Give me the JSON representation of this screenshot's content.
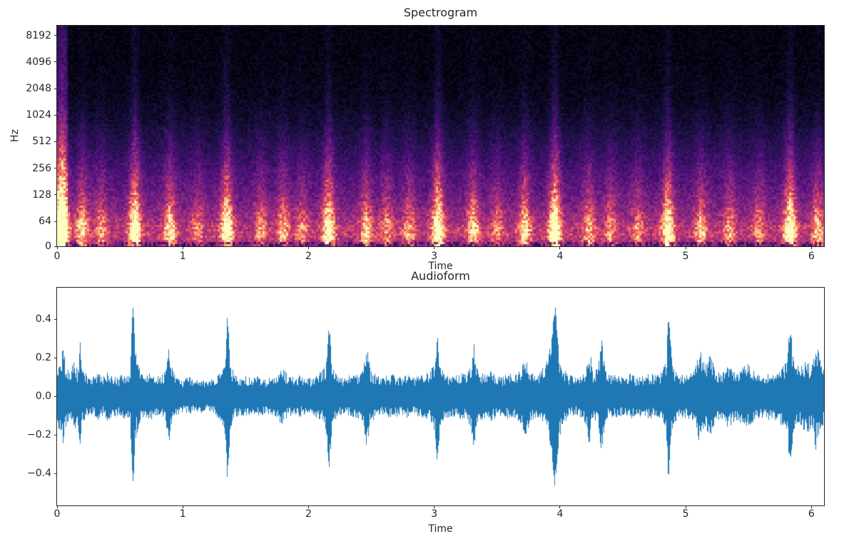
{
  "figure": {
    "background": "#ffffff",
    "text_color": "#262626",
    "spine_color": "#262626"
  },
  "chart_data": [
    {
      "type": "heatmap",
      "title": "Spectrogram",
      "xlabel": "Time",
      "ylabel": "Hz",
      "colormap": "magma",
      "x_range": [
        0,
        6.1
      ],
      "xticks": [
        0,
        1,
        2,
        3,
        4,
        5,
        6
      ],
      "yticks": [
        0,
        64,
        128,
        256,
        512,
        1024,
        2048,
        4096,
        8192
      ],
      "yticklabels": [
        "0",
        "64",
        "128",
        "256",
        "512",
        "1024",
        "2048",
        "4096",
        "8192"
      ],
      "y_scale": "log2-octaves-with-zero-floor",
      "y_top_hz": 10500,
      "grid": false,
      "legend": "none",
      "description": "Log-frequency power spectrogram, black at high frequencies, bright orange/cream energy band below ~128 Hz, purple vertical onset plumes at each percussive hit",
      "onset_times": [
        0.04,
        0.2,
        0.35,
        0.62,
        0.9,
        1.12,
        1.35,
        1.62,
        1.8,
        1.95,
        2.16,
        2.46,
        2.62,
        2.8,
        3.03,
        3.31,
        3.5,
        3.72,
        3.96,
        4.23,
        4.4,
        4.62,
        4.86,
        5.12,
        5.35,
        5.58,
        5.83,
        6.05
      ],
      "onset_strengths": [
        1.15,
        0.6,
        0.4,
        0.95,
        0.65,
        0.35,
        0.9,
        0.4,
        0.5,
        0.35,
        0.85,
        0.55,
        0.4,
        0.4,
        0.95,
        0.6,
        0.35,
        0.65,
        1.0,
        0.5,
        0.4,
        0.4,
        0.85,
        0.5,
        0.4,
        0.35,
        0.9,
        0.55
      ],
      "colormap_stops": [
        [
          0.0,
          "#000004"
        ],
        [
          0.15,
          "#1d1147"
        ],
        [
          0.3,
          "#51127c"
        ],
        [
          0.45,
          "#822681"
        ],
        [
          0.6,
          "#b73779"
        ],
        [
          0.7,
          "#e75263"
        ],
        [
          0.8,
          "#fc8961"
        ],
        [
          0.9,
          "#fec488"
        ],
        [
          1.0,
          "#fcfdbf"
        ]
      ]
    },
    {
      "type": "line",
      "title": "Audioform",
      "xlabel": "Time",
      "ylabel": "",
      "color": "#1f77b4",
      "x_range": [
        0,
        6.1
      ],
      "xticks": [
        0,
        1,
        2,
        3,
        4,
        5,
        6
      ],
      "yticks": [
        -0.4,
        -0.2,
        0.0,
        0.2,
        0.4
      ],
      "yticklabels": [
        "−0.4",
        "−0.2",
        "0.0",
        "0.2",
        "0.4"
      ],
      "ylim": [
        -0.567,
        0.563
      ],
      "grid": false,
      "legend": "none",
      "description": "Audio waveform amplitude envelope (mirrored around 0); values are [time_s, peak_amplitude]",
      "envelope_t_amp": [
        [
          0.0,
          0.15
        ],
        [
          0.03,
          0.2
        ],
        [
          0.05,
          0.28
        ],
        [
          0.07,
          0.16
        ],
        [
          0.1,
          0.12
        ],
        [
          0.13,
          0.2
        ],
        [
          0.16,
          0.14
        ],
        [
          0.18,
          0.31
        ],
        [
          0.2,
          0.15
        ],
        [
          0.24,
          0.11
        ],
        [
          0.28,
          0.1
        ],
        [
          0.32,
          0.13
        ],
        [
          0.36,
          0.1
        ],
        [
          0.4,
          0.13
        ],
        [
          0.44,
          0.11
        ],
        [
          0.48,
          0.1
        ],
        [
          0.52,
          0.12
        ],
        [
          0.56,
          0.11
        ],
        [
          0.58,
          0.16
        ],
        [
          0.6,
          0.51
        ],
        [
          0.62,
          0.24
        ],
        [
          0.66,
          0.13
        ],
        [
          0.7,
          0.11
        ],
        [
          0.74,
          0.13
        ],
        [
          0.78,
          0.11
        ],
        [
          0.82,
          0.1
        ],
        [
          0.86,
          0.14
        ],
        [
          0.89,
          0.27
        ],
        [
          0.92,
          0.13
        ],
        [
          0.96,
          0.1
        ],
        [
          1.0,
          0.09
        ],
        [
          1.05,
          0.1
        ],
        [
          1.1,
          0.08
        ],
        [
          1.15,
          0.09
        ],
        [
          1.2,
          0.08
        ],
        [
          1.25,
          0.1
        ],
        [
          1.3,
          0.13
        ],
        [
          1.33,
          0.17
        ],
        [
          1.35,
          0.44
        ],
        [
          1.38,
          0.16
        ],
        [
          1.42,
          0.11
        ],
        [
          1.46,
          0.1
        ],
        [
          1.5,
          0.11
        ],
        [
          1.55,
          0.09
        ],
        [
          1.6,
          0.11
        ],
        [
          1.65,
          0.09
        ],
        [
          1.7,
          0.1
        ],
        [
          1.75,
          0.12
        ],
        [
          1.79,
          0.17
        ],
        [
          1.83,
          0.11
        ],
        [
          1.88,
          0.1
        ],
        [
          1.93,
          0.11
        ],
        [
          1.98,
          0.09
        ],
        [
          2.03,
          0.1
        ],
        [
          2.08,
          0.12
        ],
        [
          2.13,
          0.15
        ],
        [
          2.16,
          0.39
        ],
        [
          2.19,
          0.15
        ],
        [
          2.23,
          0.11
        ],
        [
          2.28,
          0.1
        ],
        [
          2.33,
          0.11
        ],
        [
          2.38,
          0.12
        ],
        [
          2.43,
          0.14
        ],
        [
          2.46,
          0.28
        ],
        [
          2.49,
          0.14
        ],
        [
          2.54,
          0.11
        ],
        [
          2.6,
          0.1
        ],
        [
          2.66,
          0.12
        ],
        [
          2.72,
          0.1
        ],
        [
          2.78,
          0.12
        ],
        [
          2.84,
          0.1
        ],
        [
          2.9,
          0.11
        ],
        [
          2.96,
          0.13
        ],
        [
          3.0,
          0.18
        ],
        [
          3.02,
          0.34
        ],
        [
          3.05,
          0.16
        ],
        [
          3.1,
          0.12
        ],
        [
          3.15,
          0.11
        ],
        [
          3.2,
          0.12
        ],
        [
          3.26,
          0.13
        ],
        [
          3.29,
          0.16
        ],
        [
          3.31,
          0.31
        ],
        [
          3.34,
          0.14
        ],
        [
          3.39,
          0.12
        ],
        [
          3.44,
          0.14
        ],
        [
          3.49,
          0.11
        ],
        [
          3.54,
          0.1
        ],
        [
          3.59,
          0.12
        ],
        [
          3.64,
          0.11
        ],
        [
          3.69,
          0.15
        ],
        [
          3.72,
          0.22
        ],
        [
          3.76,
          0.13
        ],
        [
          3.81,
          0.12
        ],
        [
          3.86,
          0.15
        ],
        [
          3.9,
          0.2
        ],
        [
          3.93,
          0.3
        ],
        [
          3.96,
          0.5
        ],
        [
          3.99,
          0.22
        ],
        [
          4.03,
          0.14
        ],
        [
          4.08,
          0.11
        ],
        [
          4.13,
          0.1
        ],
        [
          4.18,
          0.12
        ],
        [
          4.21,
          0.16
        ],
        [
          4.23,
          0.28
        ],
        [
          4.26,
          0.13
        ],
        [
          4.3,
          0.15
        ],
        [
          4.33,
          0.3
        ],
        [
          4.36,
          0.13
        ],
        [
          4.41,
          0.11
        ],
        [
          4.46,
          0.12
        ],
        [
          4.51,
          0.1
        ],
        [
          4.56,
          0.12
        ],
        [
          4.61,
          0.1
        ],
        [
          4.66,
          0.11
        ],
        [
          4.71,
          0.12
        ],
        [
          4.76,
          0.11
        ],
        [
          4.81,
          0.13
        ],
        [
          4.84,
          0.18
        ],
        [
          4.86,
          0.44
        ],
        [
          4.89,
          0.17
        ],
        [
          4.93,
          0.12
        ],
        [
          4.98,
          0.11
        ],
        [
          5.03,
          0.13
        ],
        [
          5.08,
          0.18
        ],
        [
          5.11,
          0.25
        ],
        [
          5.15,
          0.16
        ],
        [
          5.19,
          0.22
        ],
        [
          5.24,
          0.13
        ],
        [
          5.29,
          0.12
        ],
        [
          5.34,
          0.17
        ],
        [
          5.39,
          0.13
        ],
        [
          5.44,
          0.15
        ],
        [
          5.49,
          0.17
        ],
        [
          5.54,
          0.13
        ],
        [
          5.59,
          0.11
        ],
        [
          5.64,
          0.12
        ],
        [
          5.69,
          0.13
        ],
        [
          5.74,
          0.14
        ],
        [
          5.79,
          0.18
        ],
        [
          5.83,
          0.38
        ],
        [
          5.86,
          0.17
        ],
        [
          5.91,
          0.15
        ],
        [
          5.96,
          0.2
        ],
        [
          6.0,
          0.16
        ],
        [
          6.03,
          0.28
        ],
        [
          6.07,
          0.22
        ],
        [
          6.1,
          0.15
        ]
      ]
    }
  ]
}
